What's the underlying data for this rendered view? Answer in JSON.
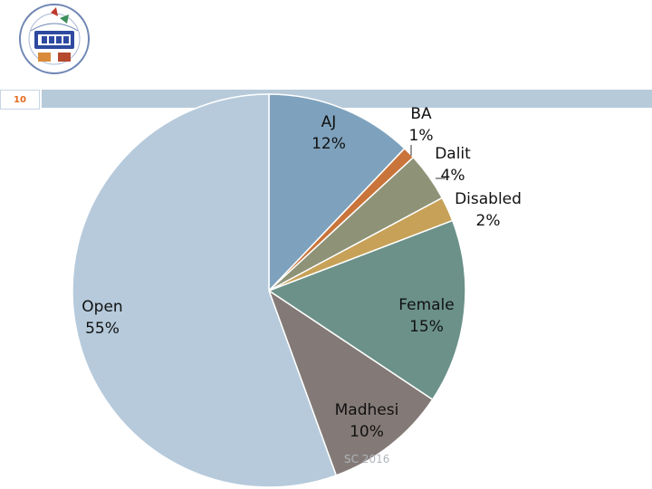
{
  "slide": {
    "number": "10"
  },
  "logo": {
    "name": "institution-seal"
  },
  "footer": {
    "text": "SC 2016"
  },
  "chart_data": {
    "type": "pie",
    "title": "",
    "slices": [
      {
        "label": "AJ",
        "value": 12,
        "percent_text": "12%",
        "color": "#7ea2bd"
      },
      {
        "label": "BA",
        "value": 1,
        "percent_text": "1%",
        "color": "#c9743a"
      },
      {
        "label": "Dalit",
        "value": 4,
        "percent_text": "4%",
        "color": "#8e9377"
      },
      {
        "label": "Disabled",
        "value": 2,
        "percent_text": "2%",
        "color": "#c6a157"
      },
      {
        "label": "Female",
        "value": 15,
        "percent_text": "15%",
        "color": "#6b9189"
      },
      {
        "label": "Madhesi",
        "value": 10,
        "percent_text": "10%",
        "color": "#837a77"
      },
      {
        "label": "Open",
        "value": 55,
        "percent_text": "55%",
        "color": "#b6cadb"
      }
    ],
    "start_angle_deg": 0,
    "direction": "clockwise",
    "legend": "none",
    "data_labels": "category and percent"
  }
}
